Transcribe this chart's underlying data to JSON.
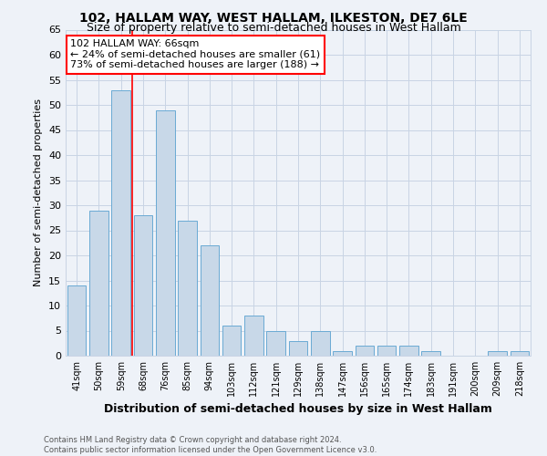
{
  "title": "102, HALLAM WAY, WEST HALLAM, ILKESTON, DE7 6LE",
  "subtitle": "Size of property relative to semi-detached houses in West Hallam",
  "xlabel": "Distribution of semi-detached houses by size in West Hallam",
  "ylabel": "Number of semi-detached properties",
  "categories": [
    "41sqm",
    "50sqm",
    "59sqm",
    "68sqm",
    "76sqm",
    "85sqm",
    "94sqm",
    "103sqm",
    "112sqm",
    "121sqm",
    "129sqm",
    "138sqm",
    "147sqm",
    "156sqm",
    "165sqm",
    "174sqm",
    "183sqm",
    "191sqm",
    "200sqm",
    "209sqm",
    "218sqm"
  ],
  "values": [
    14,
    29,
    53,
    28,
    49,
    27,
    22,
    6,
    8,
    5,
    3,
    5,
    1,
    2,
    2,
    2,
    1,
    0,
    0,
    1,
    1
  ],
  "bar_color": "#c8d8e8",
  "bar_edge_color": "#6aaad4",
  "vline_x": 2.5,
  "vline_color": "red",
  "annotation_text_line1": "102 HALLAM WAY: 66sqm",
  "annotation_text_line2": "← 24% of semi-detached houses are smaller (61)",
  "annotation_text_line3": "73% of semi-detached houses are larger (188) →",
  "grid_color": "#c8d4e4",
  "background_color": "#eef2f8",
  "footer": "Contains HM Land Registry data © Crown copyright and database right 2024.\nContains public sector information licensed under the Open Government Licence v3.0.",
  "ylim": [
    0,
    65
  ],
  "yticks": [
    0,
    5,
    10,
    15,
    20,
    25,
    30,
    35,
    40,
    45,
    50,
    55,
    60,
    65
  ]
}
